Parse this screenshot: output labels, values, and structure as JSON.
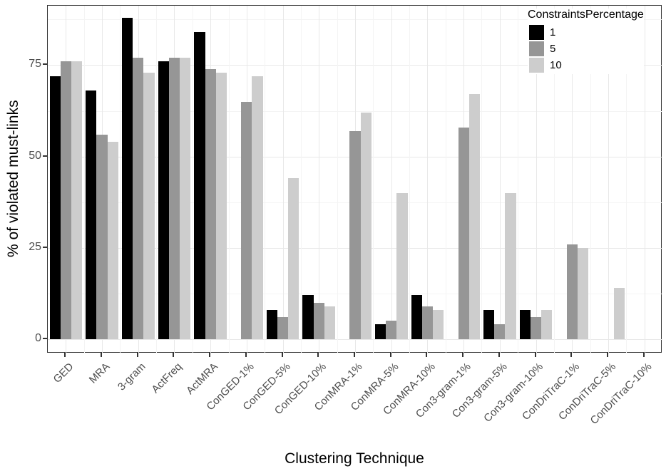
{
  "chart_data": {
    "type": "bar",
    "title": "",
    "xlabel": "Clustering Technique",
    "ylabel": "% of violated must-links",
    "legend_title": "ConstraintsPercentage",
    "legend_position": "top-right-inside",
    "grid": true,
    "ylim": [
      0,
      91
    ],
    "yticks": [
      0,
      25,
      50,
      75
    ],
    "yticks_minor": [
      12.5,
      37.5,
      62.5,
      87.5
    ],
    "categories": [
      "GED",
      "MRA",
      "3-gram",
      "ActFreq",
      "ActMRA",
      "ConGED-1%",
      "ConGED-5%",
      "ConGED-10%",
      "ConMRA-1%",
      "ConMRA-5%",
      "ConMRA-10%",
      "Con3-gram-1%",
      "Con3-gram-5%",
      "Con3-gram-10%",
      "ConDriTraC-1%",
      "ConDriTraC-5%",
      "ConDriTraC-10%"
    ],
    "series": [
      {
        "name": "1",
        "color": "#000000",
        "values": [
          72,
          68,
          88,
          76,
          84,
          0,
          8,
          12,
          0,
          4,
          12,
          0,
          8,
          8,
          0,
          0,
          0
        ]
      },
      {
        "name": "5",
        "color": "#969696",
        "values": [
          76,
          56,
          77,
          77,
          74,
          65,
          6,
          10,
          57,
          5,
          9,
          58,
          4,
          6,
          26,
          0,
          0
        ]
      },
      {
        "name": "10",
        "color": "#cdcdcd",
        "values": [
          76,
          54,
          73,
          77,
          73,
          72,
          44,
          9,
          62,
          40,
          8,
          67,
          40,
          8,
          25,
          14,
          0
        ]
      }
    ],
    "colors": {
      "panel_border": "#333333",
      "grid_major": "#e8e8e8",
      "grid_minor": "#f4f4f4",
      "tick_label": "#4d4d4d",
      "axis_title": "#000000",
      "tick_mark": "#333333",
      "background": "#ffffff"
    }
  }
}
